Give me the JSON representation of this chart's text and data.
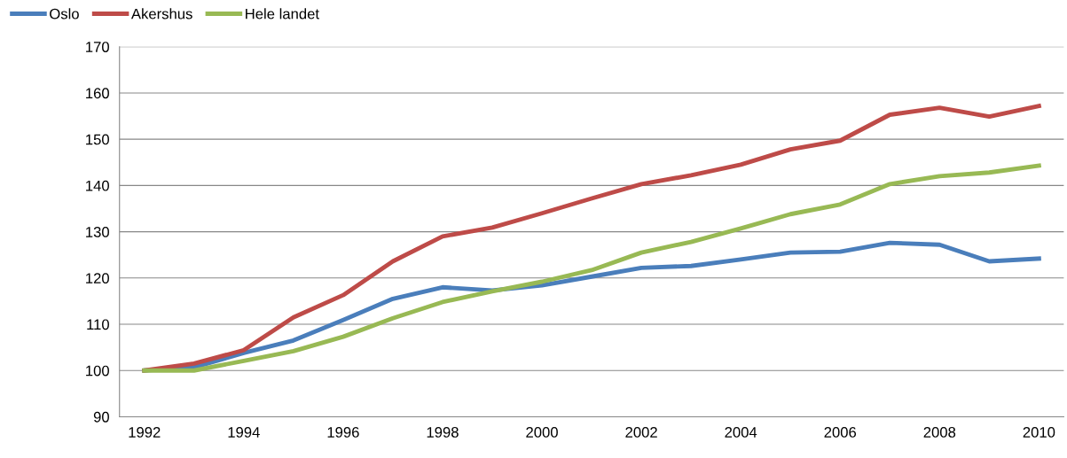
{
  "chart_data": {
    "type": "line",
    "x": [
      1992,
      1993,
      1994,
      1995,
      1996,
      1997,
      1998,
      1999,
      2000,
      2001,
      2002,
      2003,
      2004,
      2005,
      2006,
      2007,
      2008,
      2009,
      2010
    ],
    "series": [
      {
        "name": "Oslo",
        "color": "#4a7ebb",
        "values": [
          100,
          100.7,
          103.8,
          106.5,
          110.9,
          115.5,
          118.0,
          117.3,
          118.4,
          120.3,
          122.2,
          122.6,
          124.0,
          125.5,
          125.7,
          127.6,
          127.2,
          123.6,
          124.2
        ]
      },
      {
        "name": "Akershus",
        "color": "#be4b48",
        "values": [
          100,
          101.5,
          104.4,
          111.5,
          116.3,
          123.6,
          129.0,
          130.9,
          134.0,
          137.2,
          140.3,
          142.2,
          144.5,
          147.8,
          149.7,
          155.3,
          156.8,
          154.9,
          157.2
        ]
      },
      {
        "name": "Hele landet",
        "color": "#98b954",
        "values": [
          100,
          100.0,
          102.1,
          104.2,
          107.3,
          111.3,
          114.8,
          117.1,
          119.2,
          121.7,
          125.5,
          127.8,
          130.7,
          133.8,
          135.9,
          140.3,
          142.0,
          142.8,
          144.3
        ]
      }
    ],
    "xlim": [
      1991.5,
      2010.5
    ],
    "xticks": [
      1992,
      1994,
      1996,
      1998,
      2000,
      2002,
      2004,
      2006,
      2008,
      2010
    ],
    "ylim": [
      90,
      170
    ],
    "yticks": [
      90,
      100,
      110,
      120,
      130,
      140,
      150,
      160,
      170
    ],
    "grid": "y",
    "legend": "top left",
    "marker": "none",
    "line_style": "solid"
  }
}
